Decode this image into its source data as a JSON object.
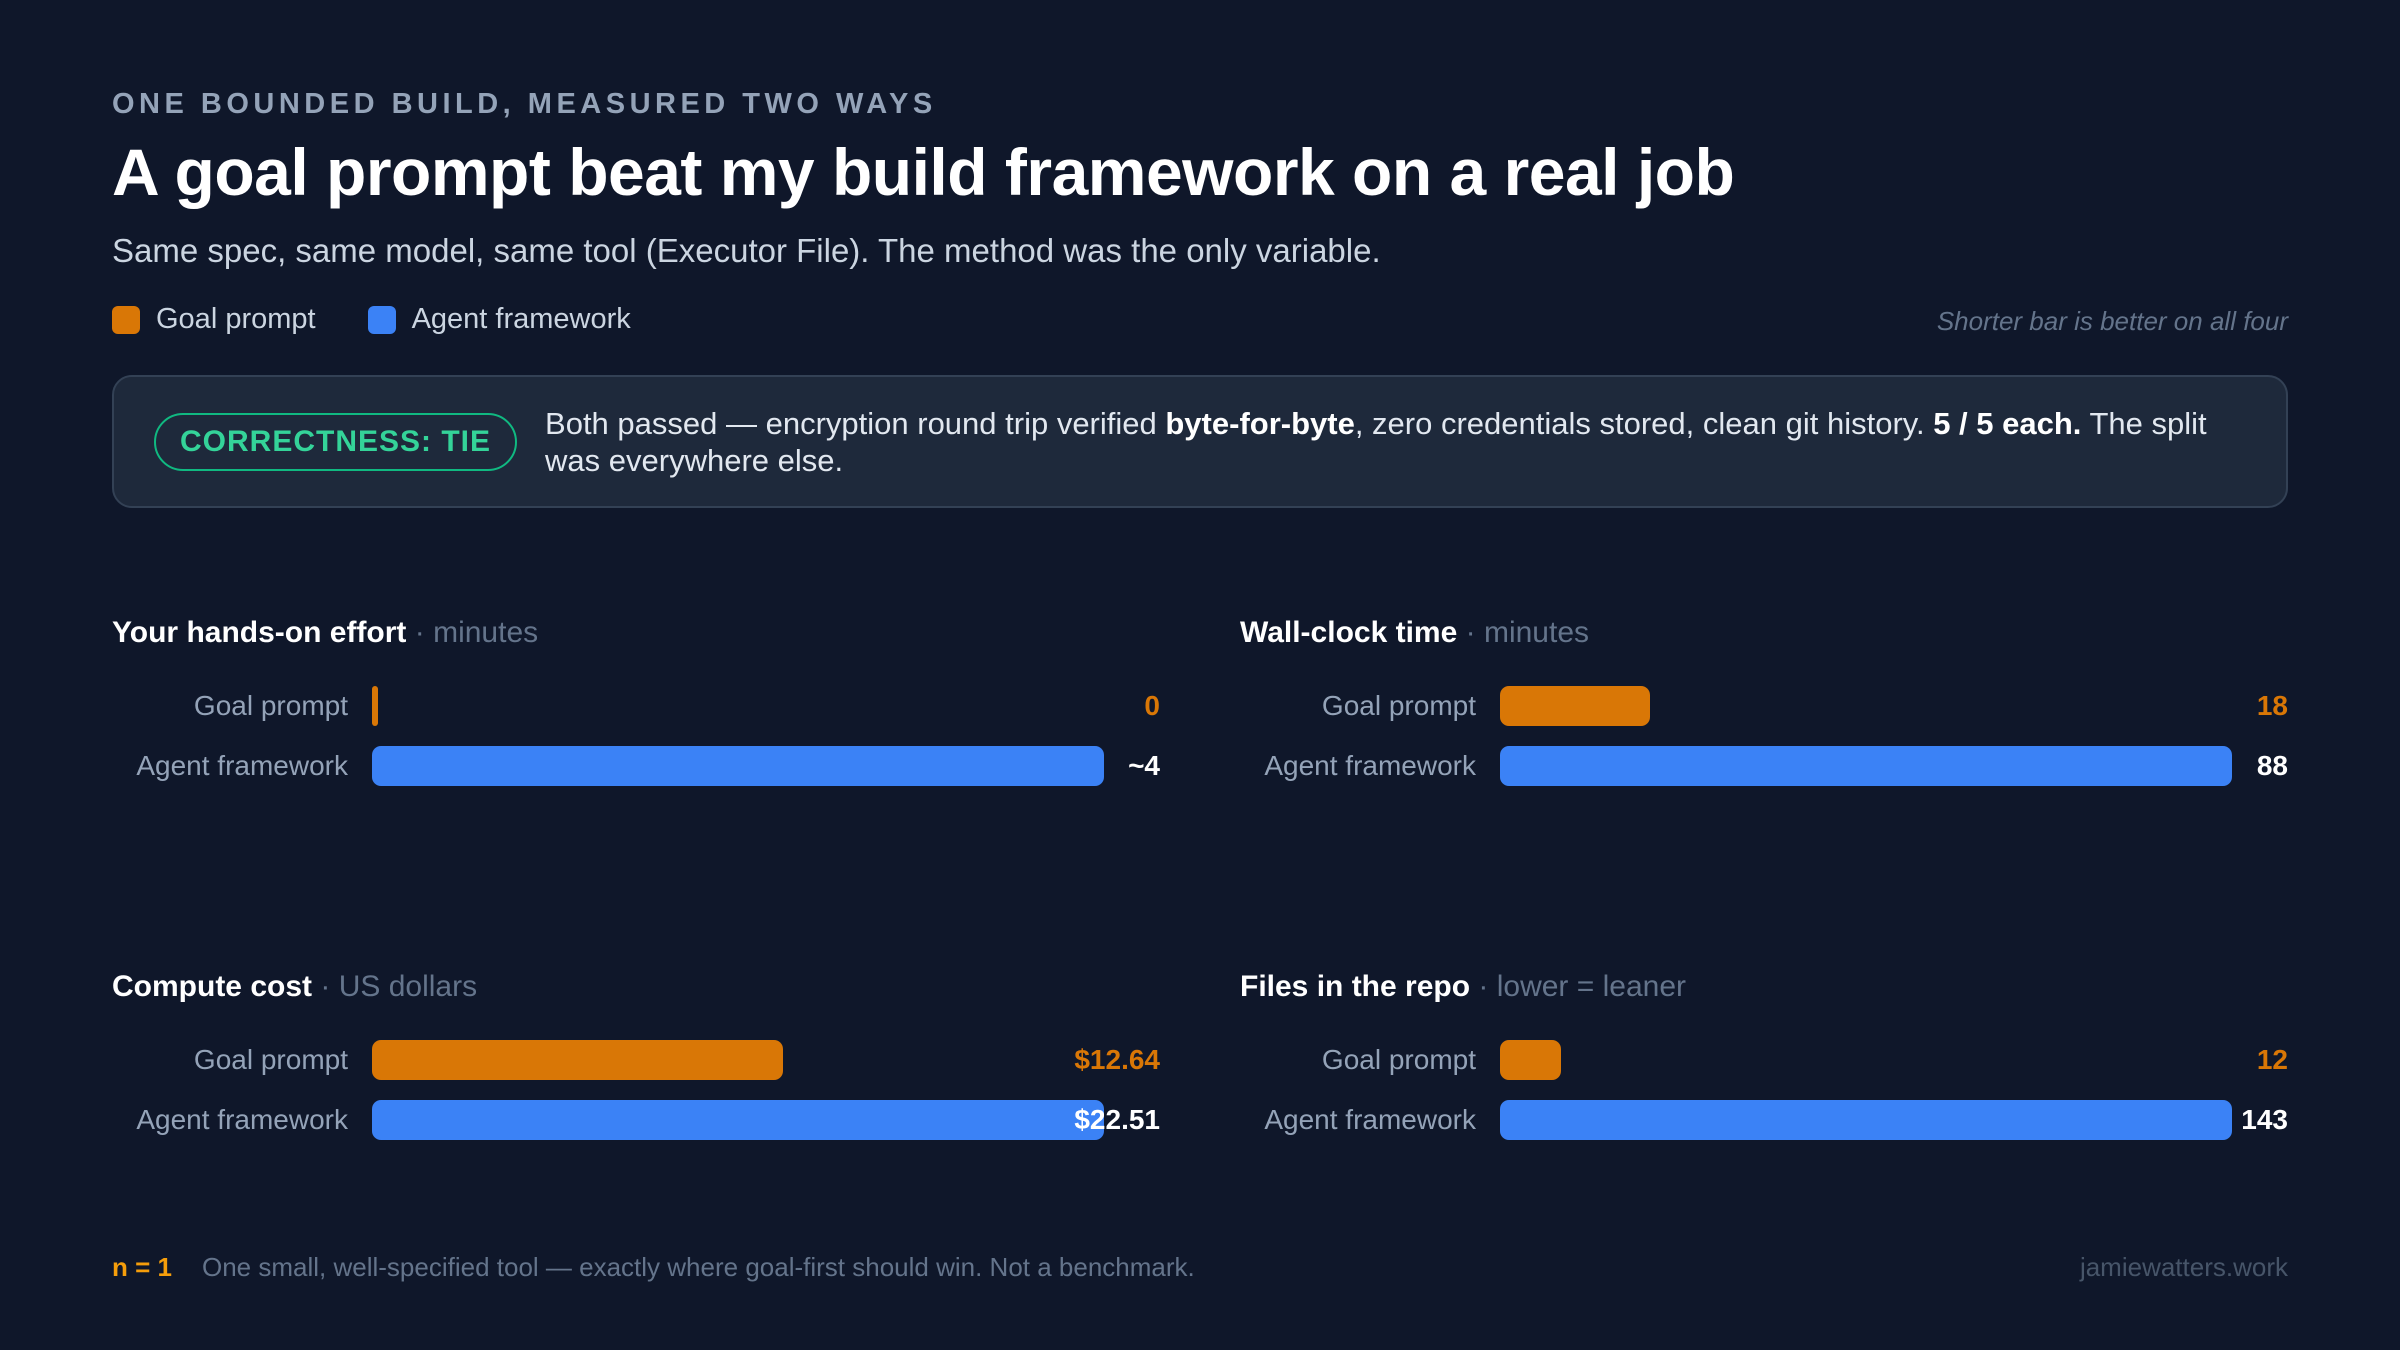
{
  "header": {
    "kicker": "ONE BOUNDED BUILD, MEASURED TWO WAYS",
    "title": "A goal prompt beat my build framework on a real job",
    "subtitle": "Same spec, same model, same tool (Executor File). The method was the only variable."
  },
  "legend": {
    "items": [
      {
        "label": "Goal prompt",
        "color": "#d97706"
      },
      {
        "label": "Agent framework",
        "color": "#3b82f6"
      }
    ],
    "note": "Shorter bar is better on all four"
  },
  "callout": {
    "badge": "CORRECTNESS: TIE",
    "text_a": "Both passed — encryption round trip verified ",
    "text_b": "byte-for-byte",
    "text_c": ", zero credentials stored, clean git history. ",
    "text_d": "5 / 5 each.",
    "text_e": " The split was everywhere else."
  },
  "chart_data": [
    {
      "type": "bar",
      "orientation": "horizontal",
      "title": "Your hands-on effort",
      "unit": "minutes",
      "categories": [
        "Goal prompt",
        "Agent framework"
      ],
      "values": [
        0,
        4
      ],
      "value_labels": [
        "0",
        "~4"
      ],
      "colors": [
        "#d97706",
        "#3b82f6"
      ]
    },
    {
      "type": "bar",
      "orientation": "horizontal",
      "title": "Wall-clock time",
      "unit": "minutes",
      "categories": [
        "Goal prompt",
        "Agent framework"
      ],
      "values": [
        18,
        88
      ],
      "value_labels": [
        "18",
        "88"
      ],
      "colors": [
        "#d97706",
        "#3b82f6"
      ]
    },
    {
      "type": "bar",
      "orientation": "horizontal",
      "title": "Compute cost",
      "unit": "US dollars",
      "categories": [
        "Goal prompt",
        "Agent framework"
      ],
      "values": [
        12.64,
        22.51
      ],
      "value_labels": [
        "$12.64",
        "$22.51"
      ],
      "colors": [
        "#d97706",
        "#3b82f6"
      ]
    },
    {
      "type": "bar",
      "orientation": "horizontal",
      "title": "Files in the repo",
      "unit": "lower = leaner",
      "categories": [
        "Goal prompt",
        "Agent framework"
      ],
      "values": [
        12,
        143
      ],
      "value_labels": [
        "12",
        "143"
      ],
      "colors": [
        "#d97706",
        "#3b82f6"
      ]
    }
  ],
  "footer": {
    "n_label": "n = 1",
    "text": "One small, well-specified tool — exactly where goal-first should win. Not a benchmark.",
    "credit": "jamiewatters.work"
  }
}
